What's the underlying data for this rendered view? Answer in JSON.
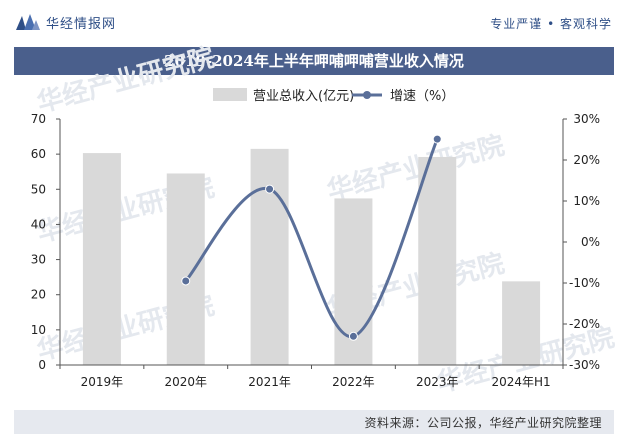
{
  "header": {
    "brand": "华经情报网",
    "slogan": "专业严谨 • 客观科学"
  },
  "title": "2019-2024年上半年呷哺呷哺营业收入情况",
  "source": "资料来源：公司公报，华经产业研究院整理",
  "watermark": "华经产业研究院",
  "colors": {
    "bar": "#d9d9d9",
    "line": "#5a6f99",
    "brand": "#2f4f87",
    "title_bg": "#4a5f8c"
  },
  "chart_data": {
    "type": "bar+line",
    "categories": [
      "2019年",
      "2020年",
      "2021年",
      "2022年",
      "2023年",
      "2024年H1"
    ],
    "series": [
      {
        "name": "营业总收入(亿元)",
        "type": "bar",
        "axis": "left",
        "values": [
          60.3,
          54.5,
          61.5,
          47.4,
          59.2,
          23.8
        ]
      },
      {
        "name": "增速（%）",
        "type": "line",
        "axis": "right",
        "values": [
          null,
          -9.5,
          12.9,
          -23.0,
          25.1,
          null
        ]
      }
    ],
    "y_left": {
      "min": 0,
      "max": 70,
      "ticks": [
        "0",
        "10",
        "20",
        "30",
        "40",
        "50",
        "60",
        "70"
      ]
    },
    "y_right": {
      "min": -30,
      "max": 30,
      "ticks": [
        "-30%",
        "-20%",
        "-10%",
        "0%",
        "10%",
        "20%",
        "30%"
      ]
    },
    "legend_position": "top-center",
    "grid": false
  }
}
